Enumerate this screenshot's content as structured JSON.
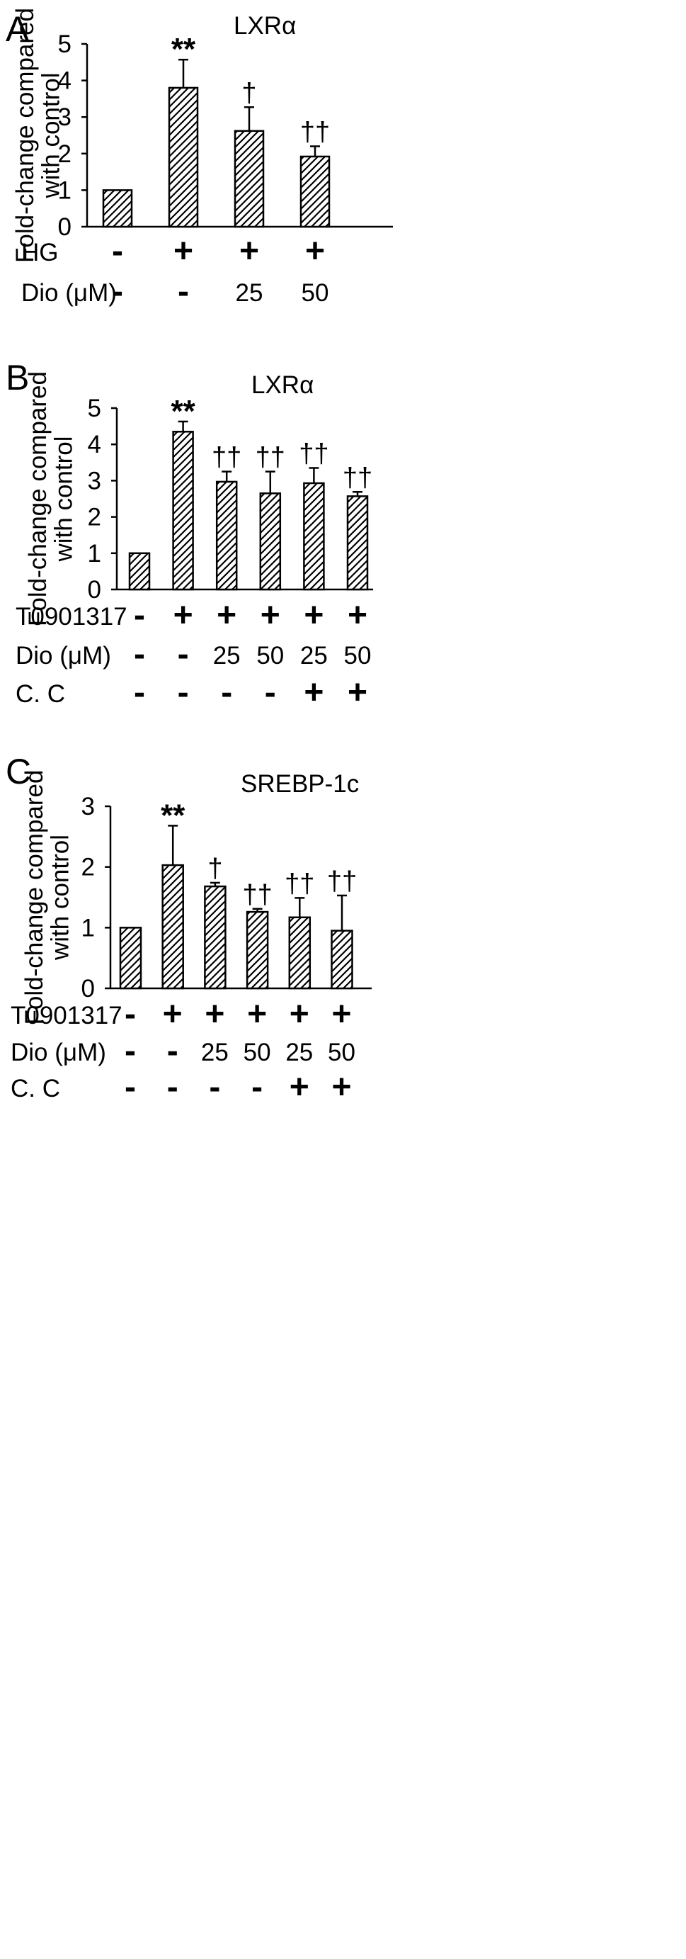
{
  "figure": {
    "panels": [
      {
        "letter": "A",
        "chart": {
          "type": "bar",
          "title": "LXRα",
          "ylabel_line1": "Fold-change compared",
          "ylabel_line2": "with control",
          "ylim": [
            0,
            5
          ],
          "yticks": [
            "0",
            "1",
            "2",
            "3",
            "4",
            "5"
          ],
          "values": [
            1.0,
            3.8,
            2.62,
            1.92
          ],
          "errors": [
            0,
            0.77,
            0.65,
            0.28
          ],
          "significance": [
            "",
            "**",
            "†",
            "††"
          ],
          "bar_color": "#ffffff",
          "hatch_color": "#000000"
        },
        "conditions": [
          {
            "label": "HG",
            "values": [
              "-",
              "+",
              "+",
              "+"
            ]
          },
          {
            "label": "Dio (μM)",
            "values": [
              "-",
              "-",
              "25",
              "50"
            ]
          }
        ]
      },
      {
        "letter": "B",
        "chart": {
          "type": "bar",
          "title": "LXRα",
          "ylabel_line1": "Fold-change compared",
          "ylabel_line2": "with control",
          "ylim": [
            0,
            5
          ],
          "yticks": [
            "0",
            "1",
            "2",
            "3",
            "4",
            "5"
          ],
          "values": [
            1.0,
            4.35,
            2.97,
            2.65,
            2.93,
            2.57
          ],
          "errors": [
            0,
            0.28,
            0.28,
            0.6,
            0.42,
            0.12
          ],
          "significance": [
            "",
            "**",
            "††",
            "††",
            "††",
            "††"
          ],
          "bar_color": "#ffffff",
          "hatch_color": "#000000"
        },
        "conditions": [
          {
            "label": "T0901317",
            "values": [
              "-",
              "+",
              "+",
              "+",
              "+",
              "+"
            ]
          },
          {
            "label": "Dio (μM)",
            "values": [
              "-",
              "-",
              "25",
              "50",
              "25",
              "50"
            ]
          },
          {
            "label": "C. C",
            "values": [
              "-",
              "-",
              "-",
              "-",
              "+",
              "+"
            ]
          }
        ]
      },
      {
        "letter": "C",
        "chart": {
          "type": "bar",
          "title": "SREBP-1c",
          "ylabel_line1": "Fold-change compared",
          "ylabel_line2": "with control",
          "ylim": [
            0,
            3
          ],
          "yticks": [
            "0",
            "1",
            "2",
            "3"
          ],
          "values": [
            1.0,
            2.03,
            1.68,
            1.26,
            1.17,
            0.95
          ],
          "errors": [
            0,
            0.65,
            0.06,
            0.05,
            0.32,
            0.58
          ],
          "significance": [
            "",
            "**",
            "†",
            "††",
            "††",
            "††"
          ],
          "bar_color": "#ffffff",
          "hatch_color": "#000000"
        },
        "conditions": [
          {
            "label": "T0901317",
            "values": [
              "-",
              "+",
              "+",
              "+",
              "+",
              "+"
            ]
          },
          {
            "label": "Dio (μM)",
            "values": [
              "-",
              "-",
              "25",
              "50",
              "25",
              "50"
            ]
          },
          {
            "label": "C. C",
            "values": [
              "-",
              "-",
              "-",
              "-",
              "+",
              "+"
            ]
          }
        ]
      }
    ]
  },
  "chart_data": [
    {
      "type": "bar",
      "title": "LXRα",
      "xlabel": "",
      "ylabel": "Fold-change compared with control",
      "ylim": [
        0,
        5
      ],
      "categories": [
        "HG - / Dio -",
        "HG + / Dio -",
        "HG + / Dio 25",
        "HG + / Dio 50"
      ],
      "values": [
        1.0,
        3.8,
        2.62,
        1.92
      ],
      "errors": [
        0,
        0.77,
        0.65,
        0.28
      ],
      "annotations": [
        "",
        "**",
        "†",
        "††"
      ],
      "grid": false
    },
    {
      "type": "bar",
      "title": "LXRα",
      "xlabel": "",
      "ylabel": "Fold-change compared with control",
      "ylim": [
        0,
        5
      ],
      "categories": [
        "- / - / -",
        "+ / - / -",
        "+ / 25 / -",
        "+ / 50 / -",
        "+ / 25 / +",
        "+ / 50 / +"
      ],
      "values": [
        1.0,
        4.35,
        2.97,
        2.65,
        2.93,
        2.57
      ],
      "errors": [
        0,
        0.28,
        0.28,
        0.6,
        0.42,
        0.12
      ],
      "annotations": [
        "",
        "**",
        "††",
        "††",
        "††",
        "††"
      ],
      "grid": false
    },
    {
      "type": "bar",
      "title": "SREBP-1c",
      "xlabel": "",
      "ylabel": "Fold-change compared with control",
      "ylim": [
        0,
        3
      ],
      "categories": [
        "- / - / -",
        "+ / - / -",
        "+ / 25 / -",
        "+ / 50 / -",
        "+ / 25 / +",
        "+ / 50 / +"
      ],
      "values": [
        1.0,
        2.03,
        1.68,
        1.26,
        1.17,
        0.95
      ],
      "errors": [
        0,
        0.65,
        0.06,
        0.05,
        0.32,
        0.58
      ],
      "annotations": [
        "",
        "**",
        "†",
        "††",
        "††",
        "††"
      ],
      "grid": false
    }
  ]
}
